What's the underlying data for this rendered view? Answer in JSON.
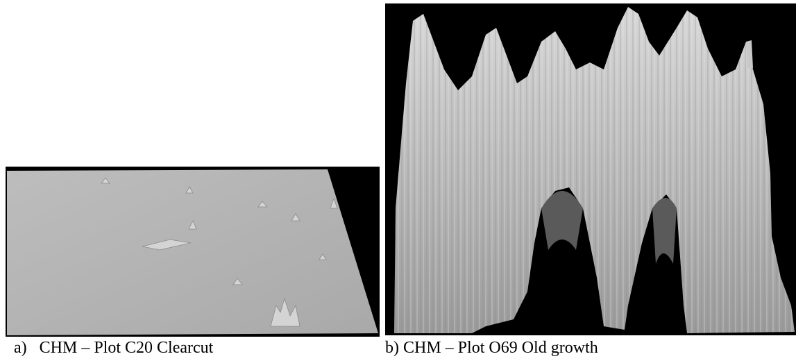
{
  "figure": {
    "panels": [
      {
        "label": "a)",
        "caption": "CHM – Plot C20 Clearcut"
      },
      {
        "label": "b)",
        "caption": "CHM – Plot O69 Old growth"
      }
    ]
  }
}
